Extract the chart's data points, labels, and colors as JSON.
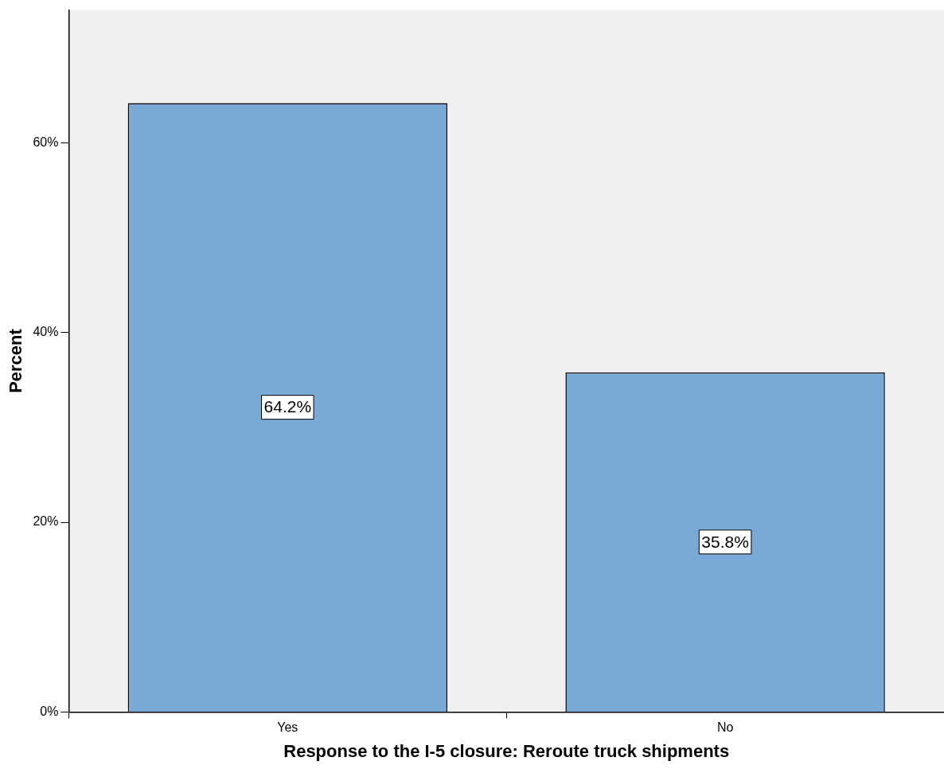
{
  "chart_data": {
    "type": "bar",
    "xlabel": "Response to the I-5 closure: Reroute truck shipments",
    "ylabel": "Percent",
    "categories": [
      "Yes",
      "No"
    ],
    "values": [
      64.2,
      35.8
    ],
    "value_labels": [
      "64.2%",
      "35.8%"
    ],
    "color": "#7ba9d6",
    "ylim": [
      0,
      74
    ],
    "yticks": [
      {
        "value": 0,
        "label": "0%"
      },
      {
        "value": 20,
        "label": "20%"
      },
      {
        "value": 40,
        "label": "40%"
      },
      {
        "value": 60,
        "label": "60%"
      }
    ],
    "grid": false,
    "legend": false
  }
}
